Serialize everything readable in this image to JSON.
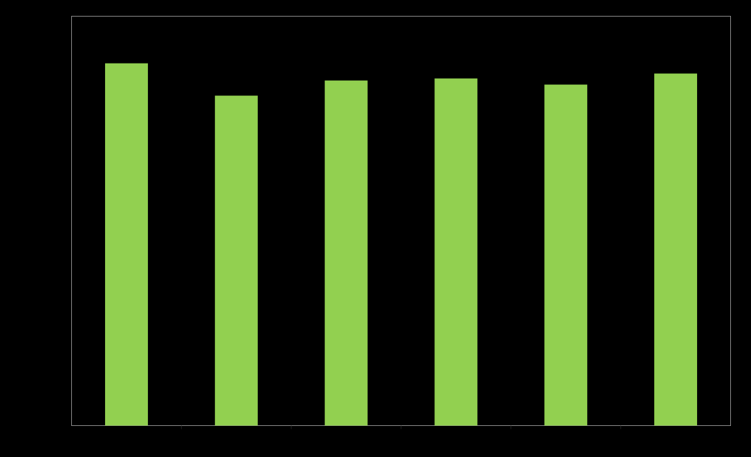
{
  "chart_data": {
    "type": "bar",
    "categories": [
      null,
      null,
      null,
      null,
      null,
      null
    ],
    "values": [
      88.5,
      80.6,
      84.3,
      84.8,
      83.3,
      86.0
    ],
    "color": "#92d050",
    "ylim": [
      0,
      100
    ]
  }
}
